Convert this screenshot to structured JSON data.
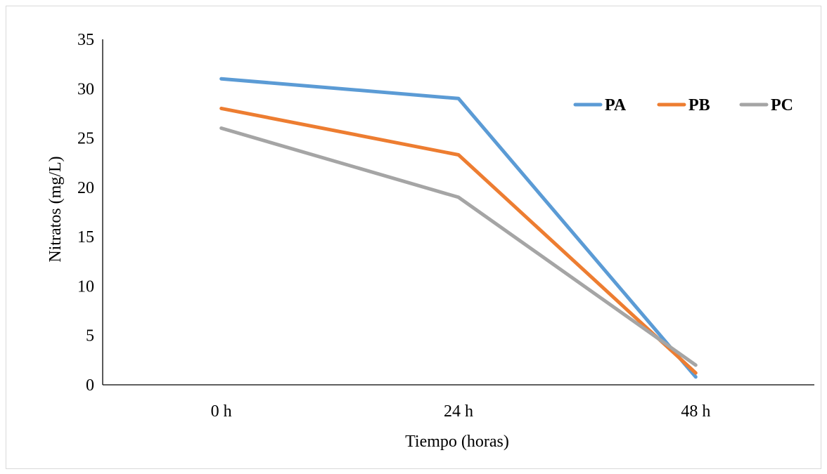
{
  "chart_data": {
    "type": "line",
    "title": "",
    "xlabel": "Tiempo (horas)",
    "ylabel": "Nitratos (mg/L)",
    "categories": [
      "0 h",
      "24 h",
      "48 h"
    ],
    "ylim": [
      0,
      35
    ],
    "yticks": [
      0,
      5,
      10,
      15,
      20,
      25,
      30,
      35
    ],
    "grid": false,
    "legend_position": "top-right",
    "series": [
      {
        "name": "PA",
        "color": "#5b9bd5",
        "values": [
          31,
          29,
          0.8
        ]
      },
      {
        "name": "PB",
        "color": "#ed7d31",
        "values": [
          28,
          23.3,
          1.2
        ]
      },
      {
        "name": "PC",
        "color": "#a5a5a5",
        "values": [
          26,
          19,
          2
        ]
      }
    ]
  }
}
